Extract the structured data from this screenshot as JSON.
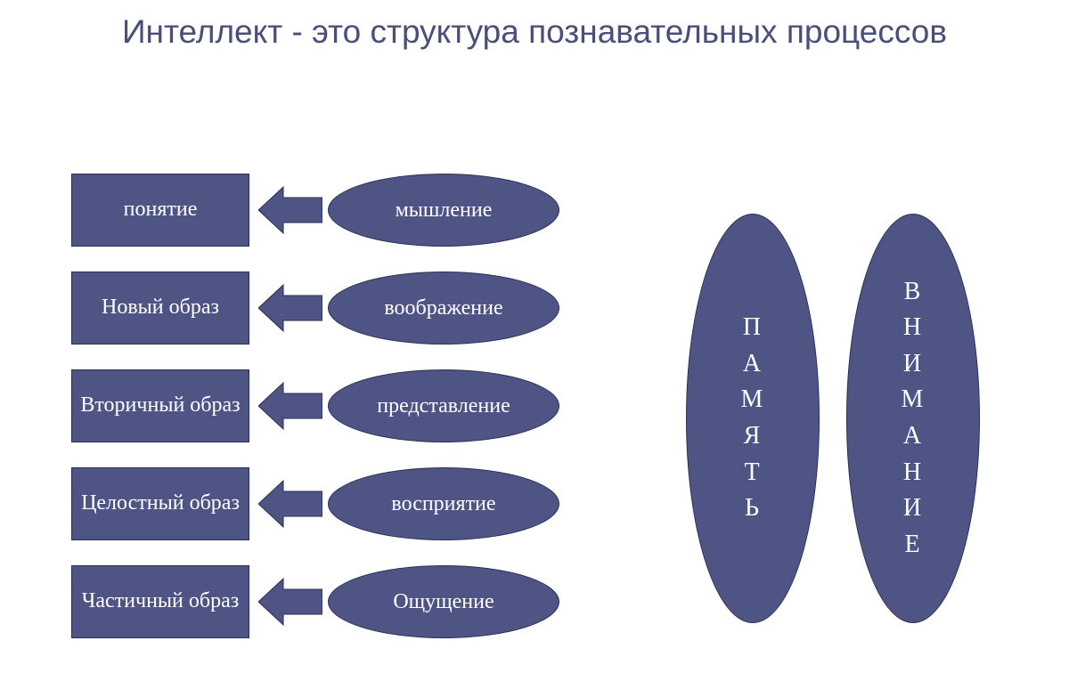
{
  "title": "Интеллект - это структура познавательных процессов",
  "colors": {
    "shape_fill": "#4e5584",
    "shape_border": "#2a2f55",
    "title_color": "#4a4f7a",
    "text_color": "#ffffff",
    "background": "#ffffff"
  },
  "typography": {
    "title_fontsize": 37,
    "shape_fontsize": 24,
    "vertical_fontsize": 28,
    "title_font": "Trebuchet MS",
    "body_font": "Georgia"
  },
  "layout": {
    "rect_width": 200,
    "rect_height": 82,
    "ellipse_width": 260,
    "ellipse_height": 82,
    "arrow_width": 72,
    "arrow_height": 56,
    "row_gap": 28,
    "tall_ellipse_width": 150,
    "tall_ellipse_height": 460,
    "tall_ellipse_gap": 30
  },
  "rows": [
    {
      "rect": "понятие",
      "ellipse": "мышление"
    },
    {
      "rect": "Новый образ",
      "ellipse": "воображение"
    },
    {
      "rect": "Вторичный образ",
      "ellipse": "представление"
    },
    {
      "rect": "Целостный образ",
      "ellipse": "восприятие"
    },
    {
      "rect": "Частичный образ",
      "ellipse": "Ощущение"
    }
  ],
  "tall_ellipses": [
    {
      "label": "ПАМЯТЬ"
    },
    {
      "label": "ВНИМАНИЕ"
    }
  ]
}
